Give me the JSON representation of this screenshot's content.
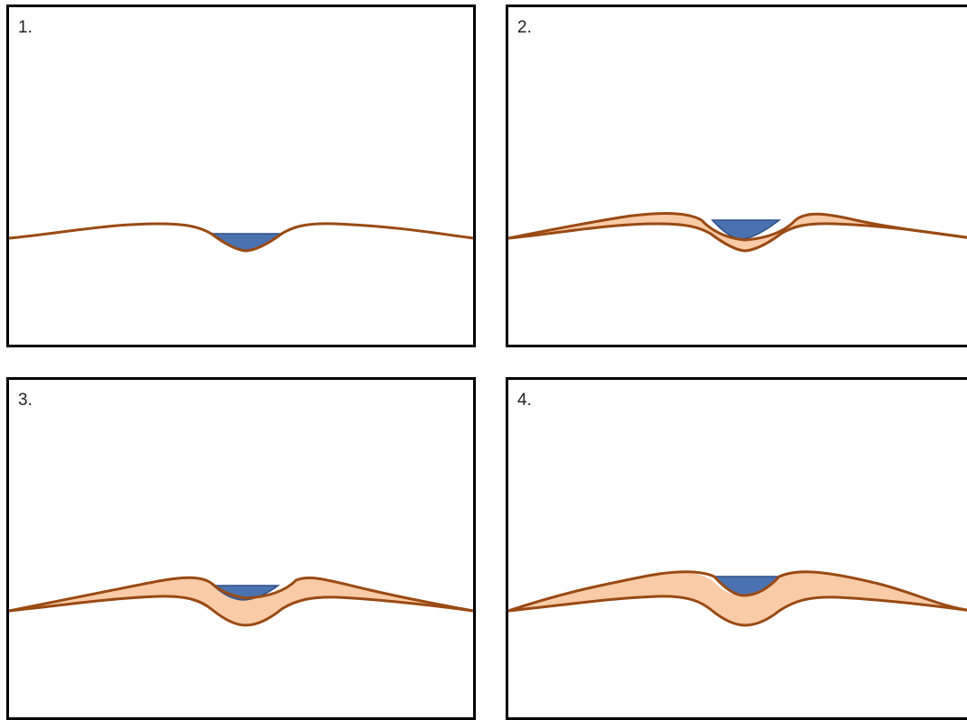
{
  "colors": {
    "ground_line": "#9a4a14",
    "water_fill": "#4a72b0",
    "water_stroke": "#2f4f86",
    "deposit_fill": "#f9cba6"
  },
  "panels": [
    {
      "label": "1."
    },
    {
      "label": "2."
    },
    {
      "label": "3."
    },
    {
      "label": "4."
    }
  ]
}
